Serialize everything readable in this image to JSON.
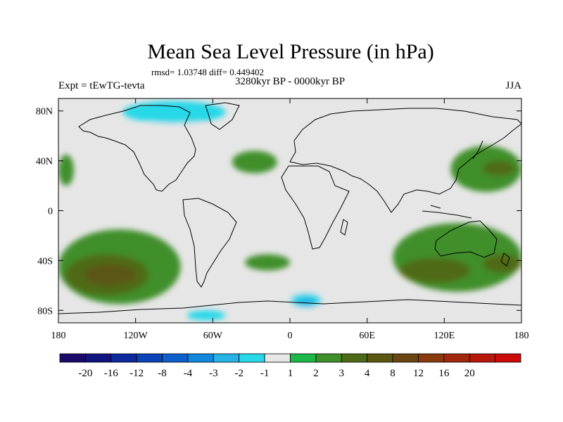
{
  "chart_data": {
    "type": "heatmap",
    "title": "Mean Sea Level Pressure (in hPa)",
    "stats_line": "rmsd= 1.03748 diff= 0.449402",
    "subtitle_left": "Expt = tEwTG-tevta",
    "subtitle_center": "3280kyr BP - 0000kyr BP",
    "subtitle_right": "JJA",
    "xlim": [
      -180,
      180
    ],
    "ylim": [
      -90,
      90
    ],
    "x_ticks": [
      {
        "value": -180,
        "label": "180"
      },
      {
        "value": -120,
        "label": "120W"
      },
      {
        "value": -60,
        "label": "60W"
      },
      {
        "value": 0,
        "label": "0"
      },
      {
        "value": 60,
        "label": "60E"
      },
      {
        "value": 120,
        "label": "120E"
      },
      {
        "value": 180,
        "label": "180"
      }
    ],
    "y_ticks": [
      {
        "value": 80,
        "label": "80N"
      },
      {
        "value": 40,
        "label": "40N"
      },
      {
        "value": 0,
        "label": "0"
      },
      {
        "value": -40,
        "label": "40S"
      },
      {
        "value": -80,
        "label": "80S"
      }
    ],
    "colorbar": {
      "colors": [
        "#1c0a6b",
        "#10147f",
        "#0a2a9e",
        "#0b43b8",
        "#0d60cc",
        "#1188dc",
        "#26b3e6",
        "#27d8e8",
        "#e6e6e6",
        "#1cb94a",
        "#3f8f2a",
        "#4f6a17",
        "#5b5612",
        "#6b4512",
        "#8a3a0f",
        "#a3280d",
        "#b8170c",
        "#cc0a0a"
      ],
      "levels": [
        -20,
        -16,
        -12,
        -8,
        -4,
        -3,
        -2,
        -1,
        1,
        2,
        3,
        4,
        8,
        12,
        16,
        20
      ],
      "labels": [
        "-20",
        "-16",
        "-12",
        "-8",
        "-4",
        "-3",
        "-2",
        "-1",
        "1",
        "2",
        "3",
        "4",
        "8",
        "12",
        "16",
        "20"
      ]
    },
    "anomaly_regions": [
      {
        "name": "n-pacific-high",
        "lon": [
          -180,
          -168
        ],
        "lat": [
          20,
          45
        ],
        "value": 2
      },
      {
        "name": "north-atlantic",
        "lon": [
          -45,
          -10
        ],
        "lat": [
          30,
          48
        ],
        "value": 2
      },
      {
        "name": "west-pacific-high",
        "lon": [
          125,
          180
        ],
        "lat": [
          15,
          52
        ],
        "value": 2
      },
      {
        "name": "west-pacific-core",
        "lon": [
          150,
          175
        ],
        "lat": [
          28,
          40
        ],
        "value": 3
      },
      {
        "name": "south-pacific-high",
        "lon": [
          -180,
          -85
        ],
        "lat": [
          -75,
          -15
        ],
        "value": 2
      },
      {
        "name": "south-pacific-mid",
        "lon": [
          -175,
          -110
        ],
        "lat": [
          -68,
          -35
        ],
        "value": 3
      },
      {
        "name": "south-pacific-core",
        "lon": [
          -160,
          -120
        ],
        "lat": [
          -60,
          -43
        ],
        "value": 4
      },
      {
        "name": "south-atlantic",
        "lon": [
          -35,
          0
        ],
        "lat": [
          -48,
          -35
        ],
        "value": 2
      },
      {
        "name": "indian-ocean-high",
        "lon": [
          80,
          180
        ],
        "lat": [
          -65,
          -10
        ],
        "value": 2
      },
      {
        "name": "indian-ocean-mid",
        "lon": [
          85,
          140
        ],
        "lat": [
          -58,
          -38
        ],
        "value": 3
      },
      {
        "name": "australia-core",
        "lon": [
          150,
          180
        ],
        "lat": [
          -50,
          -35
        ],
        "value": 3
      },
      {
        "name": "north-america-low",
        "lon": [
          -120,
          -60
        ],
        "lat": [
          38,
          75
        ],
        "value": -1
      },
      {
        "name": "arctic-low",
        "lon": [
          -130,
          -50
        ],
        "lat": [
          70,
          88
        ],
        "value": -2
      },
      {
        "name": "eurasia-low",
        "lon": [
          0,
          40
        ],
        "lat": [
          35,
          55
        ],
        "value": -1
      },
      {
        "name": "central-asia-low",
        "lon": [
          60,
          90
        ],
        "lat": [
          32,
          55
        ],
        "value": -1
      },
      {
        "name": "siberia-low",
        "lon": [
          60,
          90
        ],
        "lat": [
          70,
          85
        ],
        "value": -1
      },
      {
        "name": "far-east-low",
        "lon": [
          155,
          180
        ],
        "lat": [
          62,
          78
        ],
        "value": -1
      },
      {
        "name": "southern-ocean-low",
        "lon": [
          -10,
          50
        ],
        "lat": [
          -82,
          -62
        ],
        "value": -1
      },
      {
        "name": "southern-ocean-mid",
        "lon": [
          0,
          25
        ],
        "lat": [
          -78,
          -66
        ],
        "value": -2
      },
      {
        "name": "southern-ocean-core",
        "lon": [
          5,
          20
        ],
        "lat": [
          -76,
          -70
        ],
        "value": -3
      },
      {
        "name": "antarctic-low",
        "lon": [
          -80,
          -50
        ],
        "lat": [
          -88,
          -80
        ],
        "value": -2
      }
    ]
  }
}
